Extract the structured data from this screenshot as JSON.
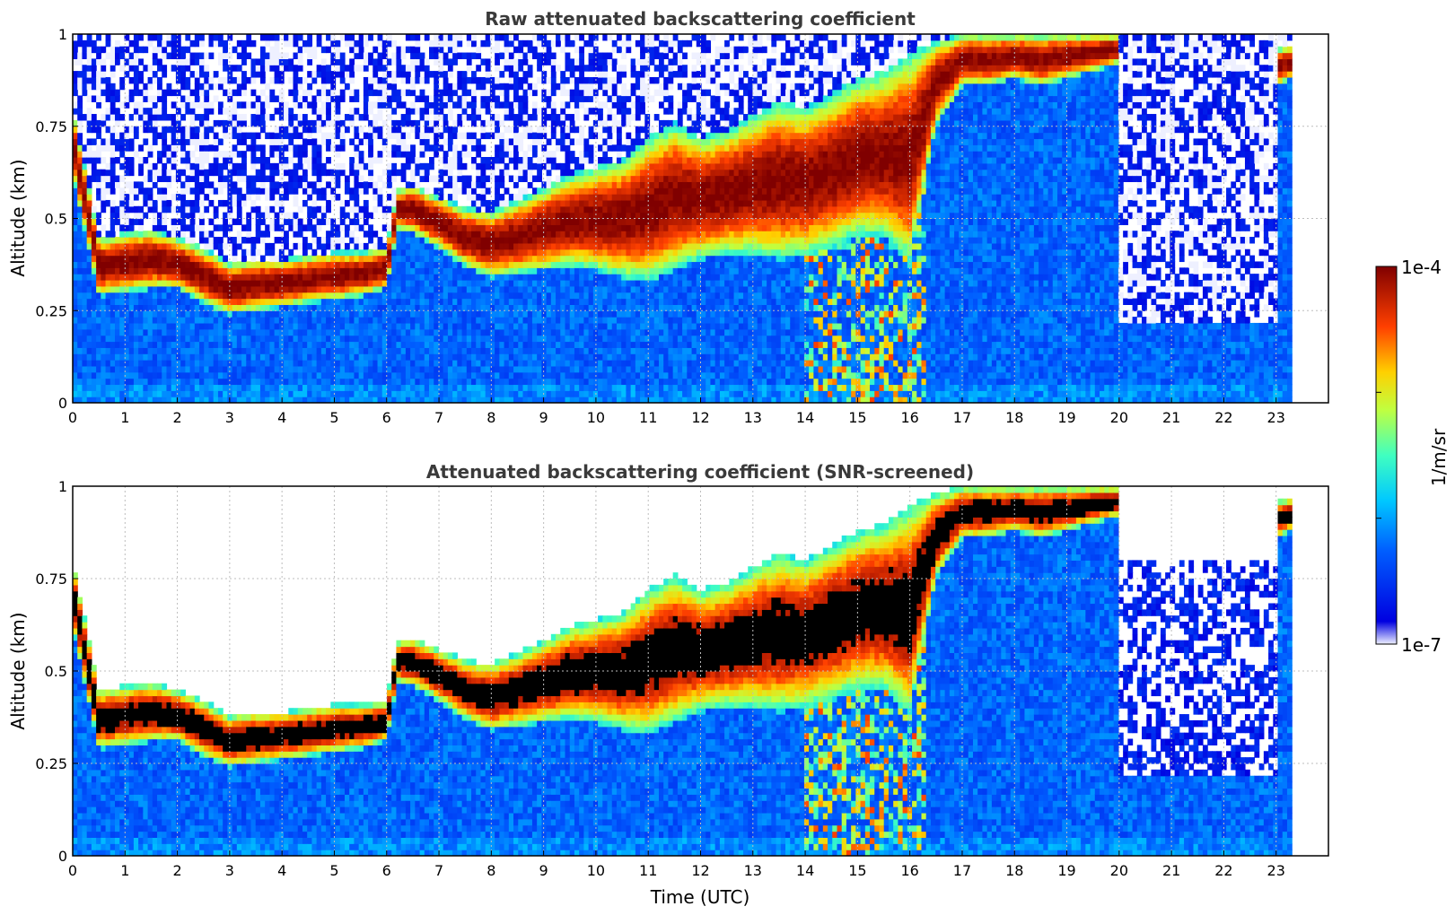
{
  "chart_data": [
    {
      "type": "heatmap",
      "title": "Raw attenuated backscattering coefficient",
      "xlabel": "",
      "ylabel": "Altitude (km)",
      "xlim": [
        0,
        24
      ],
      "ylim": [
        0,
        1
      ],
      "x_ticks": [
        "0",
        "1",
        "2",
        "3",
        "4",
        "5",
        "6",
        "7",
        "8",
        "9",
        "10",
        "11",
        "12",
        "13",
        "14",
        "15",
        "16",
        "17",
        "18",
        "19",
        "20",
        "21",
        "22",
        "23"
      ],
      "y_ticks": [
        "0",
        "0.25",
        "0.5",
        "0.75",
        "1"
      ],
      "grid": true,
      "data_end_time": 23.3,
      "screened": false,
      "cloud_layer": {
        "time": [
          0,
          0.5,
          1,
          1.5,
          2,
          2.5,
          3,
          3.5,
          4,
          4.5,
          5,
          5.5,
          6,
          6.2,
          6.5,
          7,
          7.5,
          8,
          8.5,
          9,
          9.5,
          10,
          10.5,
          11,
          11.5,
          12,
          12.5,
          13,
          13.5,
          14,
          14.5,
          15,
          15.5,
          16,
          16.5,
          17,
          17.5,
          18,
          18.5,
          19,
          19.5,
          20,
          20.5,
          21,
          21.5,
          22,
          22.5,
          23,
          23.3
        ],
        "base_km": [
          0.62,
          0.29,
          0.3,
          0.31,
          0.31,
          0.27,
          0.24,
          0.25,
          0.26,
          0.27,
          0.28,
          0.29,
          0.31,
          0.47,
          0.46,
          0.42,
          0.37,
          0.34,
          0.35,
          0.36,
          0.37,
          0.36,
          0.34,
          0.33,
          0.36,
          0.39,
          0.4,
          0.4,
          0.39,
          0.4,
          0.42,
          0.45,
          0.45,
          0.38,
          0.75,
          0.86,
          0.86,
          0.88,
          0.86,
          0.88,
          0.9,
          0.92,
          null,
          null,
          null,
          null,
          null,
          0.86,
          0.88
        ],
        "top_km": [
          0.8,
          0.45,
          0.46,
          0.47,
          0.45,
          0.42,
          0.38,
          0.39,
          0.39,
          0.4,
          0.41,
          0.41,
          0.42,
          0.58,
          0.59,
          0.56,
          0.53,
          0.52,
          0.55,
          0.58,
          0.62,
          0.64,
          0.66,
          0.72,
          0.76,
          0.72,
          0.74,
          0.78,
          0.82,
          0.8,
          0.84,
          0.88,
          0.9,
          0.95,
          0.98,
          1.0,
          1.0,
          1.0,
          1.0,
          1.0,
          1.0,
          1.0,
          null,
          null,
          null,
          null,
          null,
          0.96,
          0.97
        ]
      },
      "log_beta": [
        [
          -6.1,
          -6.1,
          -6.2,
          -6.2,
          -6.2,
          -6.2,
          -6.2,
          -6.1,
          -6.1,
          -6.1,
          -6.1,
          -6.1,
          -6.1,
          -6.0,
          -5.9,
          -5.9,
          -5.8,
          -5.8,
          -5.8,
          -5.8,
          -5.8,
          -5.8,
          -5.7,
          -5.8,
          -5.8,
          -5.9,
          -5.9,
          -5.9,
          -5.8,
          -5.7,
          -5.6,
          -5.5,
          -5.2,
          -5.1,
          -6.1,
          -6.2,
          -6.2,
          -6.2,
          -6.2,
          -6.2,
          -6.2,
          -6.2,
          -6.2,
          -6.2,
          -6.2,
          -6.2,
          -6.2,
          -6.2
        ],
        [
          -6.0,
          -6.0,
          -6.1,
          -6.1,
          -6.1,
          -6.1,
          -6.1,
          -6.0,
          -6.0,
          -6.0,
          -6.0,
          -6.0,
          -5.9,
          -5.9,
          -5.8,
          -5.8,
          -5.7,
          -5.7,
          -5.7,
          -5.7,
          -5.6,
          -5.6,
          -5.6,
          -5.7,
          -5.7,
          -5.8,
          -5.8,
          -5.8,
          -5.7,
          -5.6,
          -5.5,
          -5.3,
          -5.1,
          -5.0,
          -6.0,
          -6.1,
          -6.1,
          -6.1,
          -6.1,
          -6.1,
          -6.1,
          -6.1,
          -6.1,
          -6.1,
          -6.1,
          -6.1,
          -6.1,
          -6.1
        ],
        [
          -5.9,
          -5.9,
          -6.0,
          -6.0,
          -6.0,
          -6.0,
          -6.0,
          -5.9,
          -5.9,
          -5.9,
          -5.9,
          -5.9,
          -5.8,
          -5.8,
          -5.7,
          -5.7,
          -5.6,
          -5.6,
          -5.6,
          -5.6,
          -5.5,
          -5.5,
          -5.5,
          -5.6,
          -5.6,
          -5.7,
          -5.7,
          -5.7,
          -5.6,
          -5.5,
          -5.4,
          -5.2,
          -5.0,
          -4.9,
          -5.9,
          -6.0,
          -6.0,
          -6.0,
          -6.0,
          -6.0,
          -6.0,
          -6.0,
          -6.0,
          -6.0,
          -6.0,
          -6.0,
          -6.0,
          -6.0
        ],
        [
          -5.8,
          -5.8,
          -5.9,
          -5.9,
          -5.9,
          -5.9,
          -5.9,
          -5.8,
          -5.8,
          -5.8,
          -5.8,
          -5.8,
          -5.7,
          -5.7,
          -5.6,
          -5.6,
          -5.5,
          -5.5,
          -5.5,
          -5.5,
          -5.4,
          -5.4,
          -5.4,
          -5.5,
          -5.5,
          -5.6,
          -5.6,
          -5.6,
          -5.5,
          -5.4,
          -5.3,
          -5.1,
          -4.9,
          -4.8,
          -5.8,
          -5.9,
          -5.9,
          -5.9,
          -5.9,
          -5.9,
          -5.9,
          -5.9,
          -5.9,
          -5.9,
          -5.9,
          -5.9,
          -5.9,
          -5.9
        ]
      ],
      "log_beta_altitude_km": [
        0.05,
        0.1,
        0.15,
        0.2
      ]
    },
    {
      "type": "heatmap",
      "title": "Attenuated backscattering coefficient (SNR-screened)",
      "xlabel": "Time (UTC)",
      "ylabel": "Altitude (km)",
      "xlim": [
        0,
        24
      ],
      "ylim": [
        0,
        1
      ],
      "x_ticks": [
        "0",
        "1",
        "2",
        "3",
        "4",
        "5",
        "6",
        "7",
        "8",
        "9",
        "10",
        "11",
        "12",
        "13",
        "14",
        "15",
        "16",
        "17",
        "18",
        "19",
        "20",
        "21",
        "22",
        "23"
      ],
      "y_ticks": [
        "0",
        "0.25",
        "0.5",
        "0.75",
        "1"
      ],
      "grid": true,
      "data_end_time": 23.3,
      "screened": true
    }
  ],
  "colorbar": {
    "label": "1/m/sr",
    "max_label": "1e-4",
    "min_label": "1e-7",
    "scale": "log",
    "colormap": "jet",
    "range": [
      1e-07,
      0.0001
    ]
  },
  "colors": {
    "saturated": "#000000",
    "background": "#ffffff",
    "grid": "#bdbdbd",
    "title": "#3a3a3a"
  }
}
